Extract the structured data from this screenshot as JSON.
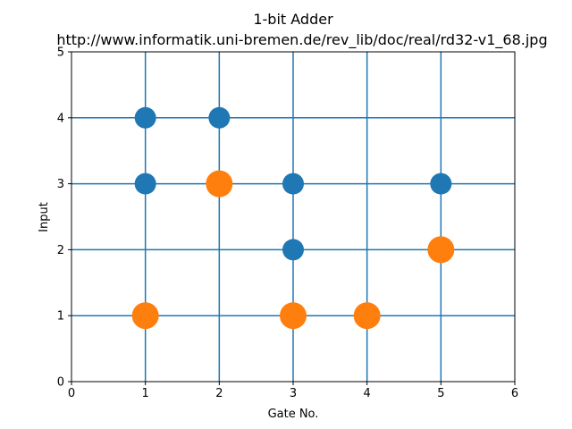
{
  "chart_data": {
    "type": "scatter",
    "title": "1-bit Adder",
    "subtitle": "http://www.informatik.uni-bremen.de/rev_lib/doc/real/rd32-v1_68.jpg",
    "xlabel": "Gate No.",
    "ylabel": "Input",
    "xlim": [
      0,
      6
    ],
    "ylim": [
      0,
      5
    ],
    "xticks": [
      "0",
      "1",
      "2",
      "3",
      "4",
      "5",
      "6"
    ],
    "yticks": [
      "0",
      "1",
      "2",
      "3",
      "4",
      "5"
    ],
    "grid_x": [
      1,
      2,
      3,
      4,
      5
    ],
    "grid_y": [
      1,
      2,
      3,
      4
    ],
    "grid": true,
    "line_color": "#1f77b4",
    "series": [
      {
        "color": "#1f77b4",
        "size": "small",
        "points": [
          [
            1,
            4
          ],
          [
            2,
            4
          ],
          [
            1,
            3
          ],
          [
            3,
            3
          ],
          [
            5,
            3
          ],
          [
            3,
            2
          ]
        ]
      },
      {
        "color": "#ff7f0e",
        "size": "large",
        "points": [
          [
            2,
            3
          ],
          [
            5,
            2
          ],
          [
            1,
            1
          ],
          [
            3,
            1
          ],
          [
            4,
            1
          ]
        ]
      }
    ]
  }
}
